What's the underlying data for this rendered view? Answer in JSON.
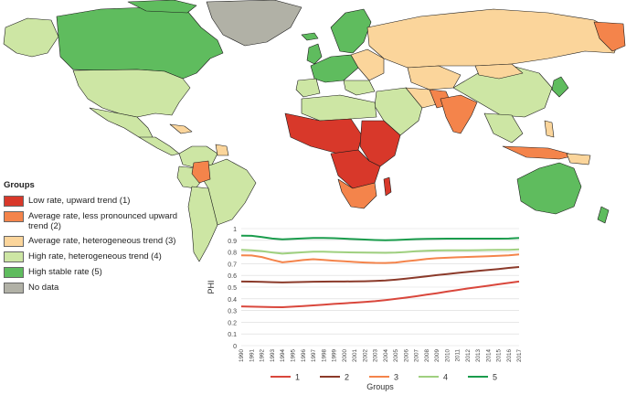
{
  "legend": {
    "title": "Groups",
    "items": [
      {
        "label": "Low rate, upward trend (1)",
        "color": "#d8382a"
      },
      {
        "label": "Average rate, less pronounced upward trend (2)",
        "color": "#f4844b"
      },
      {
        "label": "Average rate, heterogeneous trend (3)",
        "color": "#fbd59b"
      },
      {
        "label": "High rate, heterogeneous trend (4)",
        "color": "#cde6a4"
      },
      {
        "label": "High stable rate (5)",
        "color": "#5fbc5e"
      },
      {
        "label": "No data",
        "color": "#b1b1a6"
      }
    ]
  },
  "map": {
    "ocean_color": "#ffffff",
    "border_color": "#1a1a1a"
  },
  "chart_data": {
    "type": "line",
    "ylabel": "PHI",
    "xlabel": "Groups",
    "ylim": [
      0,
      1
    ],
    "yticks": [
      "0",
      "0.1",
      "0.2",
      "0.3",
      "0.4",
      "0.5",
      "0.6",
      "0.7",
      "0.8",
      "0.9",
      "1"
    ],
    "x": [
      "1990",
      "1991",
      "1992",
      "1993",
      "1994",
      "1995",
      "1996",
      "1997",
      "1998",
      "1999",
      "2000",
      "2001",
      "2002",
      "2003",
      "2004",
      "2005",
      "2006",
      "2007",
      "2008",
      "2009",
      "2010",
      "2011",
      "2012",
      "2013",
      "2014",
      "2015",
      "2016",
      "2017"
    ],
    "series": [
      {
        "name": "1",
        "color": "#d9473c",
        "values": [
          0.335,
          0.333,
          0.331,
          0.329,
          0.328,
          0.333,
          0.338,
          0.344,
          0.35,
          0.356,
          0.362,
          0.367,
          0.373,
          0.38,
          0.389,
          0.399,
          0.41,
          0.422,
          0.435,
          0.448,
          0.462,
          0.475,
          0.488,
          0.5,
          0.512,
          0.524,
          0.536,
          0.548
        ]
      },
      {
        "name": "2",
        "color": "#8b3a2a",
        "values": [
          0.548,
          0.547,
          0.545,
          0.542,
          0.54,
          0.542,
          0.544,
          0.546,
          0.547,
          0.548,
          0.548,
          0.549,
          0.55,
          0.552,
          0.556,
          0.563,
          0.572,
          0.582,
          0.592,
          0.602,
          0.612,
          0.621,
          0.63,
          0.639,
          0.647,
          0.655,
          0.664,
          0.672
        ]
      },
      {
        "name": "3",
        "color": "#f4844b",
        "values": [
          0.772,
          0.77,
          0.757,
          0.733,
          0.712,
          0.721,
          0.731,
          0.738,
          0.732,
          0.726,
          0.721,
          0.715,
          0.71,
          0.707,
          0.706,
          0.71,
          0.72,
          0.73,
          0.74,
          0.747,
          0.751,
          0.755,
          0.758,
          0.761,
          0.764,
          0.768,
          0.772,
          0.78
        ]
      },
      {
        "name": "4",
        "color": "#9fd07f",
        "values": [
          0.818,
          0.814,
          0.808,
          0.796,
          0.786,
          0.792,
          0.798,
          0.802,
          0.802,
          0.8,
          0.798,
          0.796,
          0.795,
          0.794,
          0.793,
          0.795,
          0.8,
          0.806,
          0.81,
          0.813,
          0.814,
          0.815,
          0.815,
          0.816,
          0.817,
          0.818,
          0.819,
          0.822
        ]
      },
      {
        "name": "5",
        "color": "#1a9c4c",
        "values": [
          0.94,
          0.938,
          0.928,
          0.915,
          0.908,
          0.912,
          0.916,
          0.92,
          0.92,
          0.918,
          0.914,
          0.91,
          0.906,
          0.902,
          0.9,
          0.902,
          0.906,
          0.91,
          0.912,
          0.913,
          0.914,
          0.914,
          0.914,
          0.914,
          0.914,
          0.914,
          0.915,
          0.92
        ]
      }
    ]
  }
}
